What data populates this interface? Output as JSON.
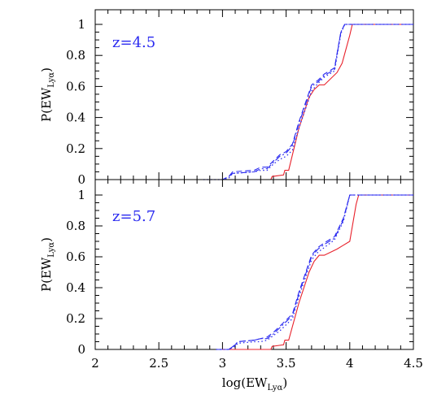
{
  "chart_data": {
    "type": "line",
    "xlabel": "log(EW",
    "xlabel_sub": "Lyα",
    "xlabel_close": ")",
    "ylabel": "P(EW",
    "ylabel_sub": "Lyα",
    "ylabel_close": ")",
    "xlim": [
      2,
      4.5
    ],
    "ylim": [
      0,
      1.05
    ],
    "x_ticks": [
      2,
      2.5,
      3,
      3.5,
      4,
      4.5
    ],
    "x_tick_labels": [
      "2",
      "2.5",
      "3",
      "3.5",
      "4",
      "4.5"
    ],
    "y_ticks": [
      0,
      0.2,
      0.4,
      0.6,
      0.8,
      1
    ],
    "y_tick_labels": [
      "0",
      "0.2",
      "0.4",
      "0.6",
      "0.8",
      "1"
    ],
    "grid": false,
    "legend": "none",
    "colors": {
      "solid": "#e8212b",
      "dashed": "#2a2af0",
      "dotted": "#2a2af0",
      "dashdot": "#2a2af0"
    },
    "panels": [
      {
        "label": "z=4.5",
        "series": [
          {
            "style": "solid",
            "x": [
              3.0,
              3.38,
              3.39,
              3.48,
              3.49,
              3.52,
              3.6,
              3.68,
              3.72,
              3.76,
              3.8,
              3.9,
              3.94,
              4.0,
              4.02,
              4.5
            ],
            "y": [
              0,
              0,
              0.02,
              0.03,
              0.06,
              0.06,
              0.33,
              0.53,
              0.58,
              0.61,
              0.61,
              0.69,
              0.75,
              0.93,
              1.0,
              1.0
            ]
          },
          {
            "style": "dashed",
            "x": [
              2.85,
              3.0,
              3.05,
              3.08,
              3.25,
              3.3,
              3.35,
              3.4,
              3.45,
              3.5,
              3.55,
              3.6,
              3.7,
              3.75,
              3.8,
              3.88,
              3.93,
              3.96,
              4.5
            ],
            "y": [
              0,
              0,
              0.02,
              0.05,
              0.06,
              0.08,
              0.08,
              0.12,
              0.16,
              0.18,
              0.23,
              0.37,
              0.61,
              0.64,
              0.68,
              0.72,
              0.95,
              1.0,
              1.0
            ]
          },
          {
            "style": "dotted",
            "x": [
              2.85,
              3.0,
              3.05,
              3.08,
              3.25,
              3.3,
              3.35,
              3.4,
              3.45,
              3.5,
              3.55,
              3.6,
              3.7,
              3.75,
              3.8,
              3.88,
              3.93,
              3.96,
              4.5
            ],
            "y": [
              0,
              0,
              0.01,
              0.04,
              0.05,
              0.06,
              0.06,
              0.1,
              0.13,
              0.15,
              0.19,
              0.33,
              0.57,
              0.62,
              0.66,
              0.7,
              0.94,
              1.0,
              1.0
            ]
          },
          {
            "style": "dashdot",
            "x": [
              2.85,
              3.0,
              3.05,
              3.08,
              3.25,
              3.3,
              3.35,
              3.4,
              3.45,
              3.5,
              3.55,
              3.6,
              3.7,
              3.75,
              3.8,
              3.88,
              3.93,
              3.96,
              4.5
            ],
            "y": [
              0,
              0,
              0.02,
              0.04,
              0.05,
              0.07,
              0.07,
              0.11,
              0.15,
              0.17,
              0.22,
              0.36,
              0.6,
              0.63,
              0.67,
              0.71,
              0.95,
              1.0,
              1.0
            ]
          }
        ]
      },
      {
        "label": "z=5.7",
        "series": [
          {
            "style": "solid",
            "x": [
              3.0,
              3.38,
              3.39,
              3.48,
              3.49,
              3.52,
              3.6,
              3.68,
              3.72,
              3.76,
              3.8,
              3.9,
              3.94,
              4.0,
              4.05,
              4.07,
              4.5
            ],
            "y": [
              0,
              0,
              0.02,
              0.03,
              0.06,
              0.06,
              0.3,
              0.5,
              0.57,
              0.61,
              0.61,
              0.65,
              0.67,
              0.7,
              0.94,
              1.0,
              1.0
            ]
          },
          {
            "style": "dashed",
            "x": [
              2.95,
              3.05,
              3.1,
              3.12,
              3.25,
              3.3,
              3.35,
              3.4,
              3.45,
              3.5,
              3.55,
              3.6,
              3.7,
              3.75,
              3.8,
              3.88,
              3.95,
              4.0,
              4.5
            ],
            "y": [
              0,
              0,
              0.03,
              0.05,
              0.06,
              0.07,
              0.08,
              0.11,
              0.15,
              0.19,
              0.23,
              0.37,
              0.61,
              0.66,
              0.69,
              0.73,
              0.85,
              1.0,
              1.0
            ]
          },
          {
            "style": "dotted",
            "x": [
              2.95,
              3.05,
              3.1,
              3.12,
              3.25,
              3.3,
              3.35,
              3.4,
              3.45,
              3.5,
              3.55,
              3.6,
              3.7,
              3.75,
              3.8,
              3.88,
              3.95,
              4.0,
              4.5
            ],
            "y": [
              0,
              0,
              0.02,
              0.04,
              0.05,
              0.05,
              0.06,
              0.09,
              0.12,
              0.16,
              0.2,
              0.34,
              0.58,
              0.63,
              0.66,
              0.71,
              0.83,
              1.0,
              1.0
            ]
          },
          {
            "style": "dashdot",
            "x": [
              2.95,
              3.05,
              3.1,
              3.12,
              3.25,
              3.3,
              3.35,
              3.4,
              3.45,
              3.5,
              3.55,
              3.6,
              3.7,
              3.75,
              3.8,
              3.88,
              3.95,
              4.0,
              4.5
            ],
            "y": [
              0,
              0,
              0.03,
              0.05,
              0.06,
              0.07,
              0.07,
              0.1,
              0.14,
              0.18,
              0.22,
              0.36,
              0.6,
              0.65,
              0.68,
              0.72,
              0.84,
              1.0,
              1.0
            ]
          }
        ]
      }
    ]
  }
}
